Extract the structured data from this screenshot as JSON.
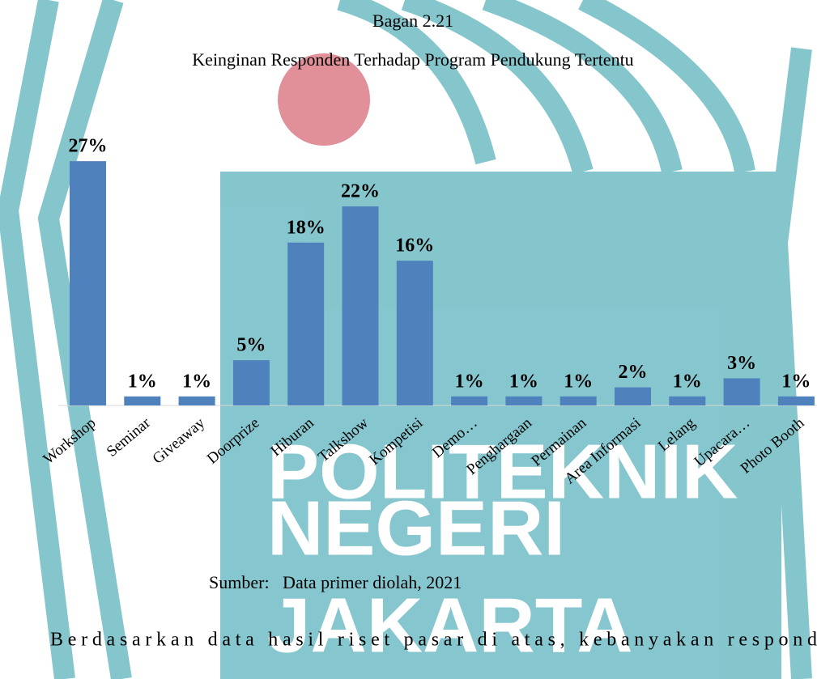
{
  "header": {
    "caption": "Bagan 2.21"
  },
  "chart_data": {
    "type": "bar",
    "title": "Keinginan Responden Terhadap Program Pendukung Tertentu",
    "categories": [
      "Workshop",
      "Seminar",
      "Giveaway",
      "Doorprize",
      "Hiburan",
      "Talkshow",
      "Kompetisi",
      "Demo…",
      "Penghargaan",
      "Permainan",
      "Area Informasi",
      "Lelang",
      "Upacara…",
      "Photo Booth"
    ],
    "values": [
      27,
      1,
      1,
      5,
      18,
      22,
      16,
      1,
      1,
      1,
      2,
      1,
      3,
      1
    ],
    "value_labels": [
      "27%",
      "1%",
      "1%",
      "5%",
      "18%",
      "22%",
      "16%",
      "1%",
      "1%",
      "1%",
      "2%",
      "1%",
      "3%",
      "1%"
    ],
    "color": "#4f81bd"
  },
  "source": "Sumber:   Data primer diolah, 2021",
  "body": "Berdasarkan data hasil riset pasar di atas, kebanyakan respond",
  "watermark": [
    "POLITEKNIK",
    "NEGERI",
    "JAKARTA"
  ]
}
